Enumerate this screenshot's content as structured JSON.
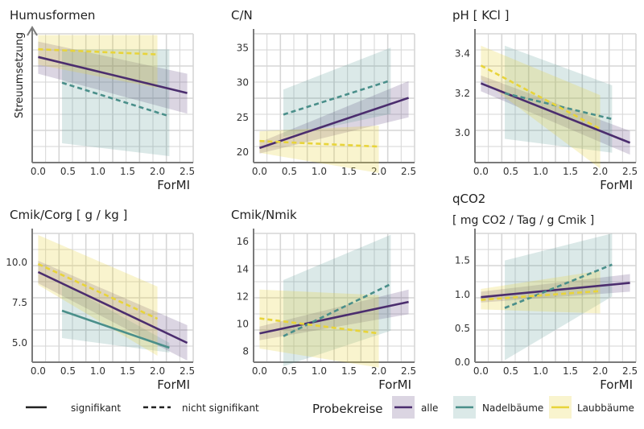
{
  "colors": {
    "alle": "#4b2d6e",
    "nadel": "#4a8f8a",
    "laub": "#e8d43a",
    "grid": "#d6d6d6",
    "axis": "#7a7a7a",
    "panel_bg": "#ffffff"
  },
  "chart_data": [
    {
      "type": "line",
      "title": "Humusformen",
      "ylabel": "Streuumsetzung",
      "xlabel": "ForMI",
      "xlim": [
        -0.1,
        2.6
      ],
      "ylim": [
        0,
        10
      ],
      "xticks": [
        "0.0",
        "0.5",
        "1.0",
        "1.5",
        "2.0",
        "2.5"
      ],
      "yticks": [],
      "series": [
        {
          "name": "alle",
          "style": "solid",
          "x": [
            0.0,
            2.5
          ],
          "y": [
            8.2,
            5.4
          ],
          "band_lo": [
            6.9,
            3.8
          ],
          "band_hi": [
            9.4,
            6.9
          ]
        },
        {
          "name": "Nadelbäume",
          "style": "dashed",
          "x": [
            0.4,
            2.2
          ],
          "y": [
            6.2,
            3.6
          ],
          "band_lo": [
            1.5,
            0.5
          ],
          "band_hi": [
            8.8,
            8.8
          ]
        },
        {
          "name": "Laubbäume",
          "style": "dashed",
          "x": [
            0.0,
            2.0
          ],
          "y": [
            8.8,
            8.4
          ],
          "band_lo": [
            7.6,
            5.8
          ],
          "band_hi": [
            9.9,
            9.9
          ]
        }
      ]
    },
    {
      "type": "line",
      "title": "C/N",
      "ylabel": "",
      "xlabel": "",
      "xlim": [
        -0.1,
        2.6
      ],
      "ylim": [
        18.5,
        37
      ],
      "xticks": [
        "0.0",
        "0.5",
        "1.0",
        "1.5",
        "2.0",
        "2.5"
      ],
      "yticks": [
        "20",
        "25",
        "30",
        "35"
      ],
      "series": [
        {
          "name": "alle",
          "style": "solid",
          "x": [
            0.0,
            2.5
          ],
          "y": [
            20.6,
            27.8
          ],
          "band_lo": [
            19.8,
            25.0
          ],
          "band_hi": [
            21.4,
            30.2
          ]
        },
        {
          "name": "Nadelbäume",
          "style": "dashed",
          "x": [
            0.4,
            2.2
          ],
          "y": [
            25.4,
            30.3
          ],
          "band_lo": [
            22.2,
            25.5
          ],
          "band_hi": [
            29.0,
            35.0
          ]
        },
        {
          "name": "Laubbäume",
          "style": "dashed",
          "x": [
            0.0,
            2.0
          ],
          "y": [
            21.6,
            20.8
          ],
          "band_lo": [
            19.9,
            17.0
          ],
          "band_hi": [
            23.0,
            23.8
          ]
        }
      ]
    },
    {
      "type": "line",
      "title": "pH [ KCl ]",
      "ylabel": "",
      "xlabel": "ForMI",
      "xlim": [
        -0.1,
        2.6
      ],
      "ylim": [
        2.85,
        3.5
      ],
      "xticks": [
        "0.0",
        "0.5",
        "1.0",
        "1.5",
        "2.0",
        "2.5"
      ],
      "yticks": [
        "3.0",
        "3.2",
        "3.4"
      ],
      "series": [
        {
          "name": "alle",
          "style": "solid",
          "x": [
            0.0,
            2.5
          ],
          "y": [
            3.25,
            2.95
          ],
          "band_lo": [
            3.21,
            2.89
          ],
          "band_hi": [
            3.29,
            3.01
          ]
        },
        {
          "name": "Nadelbäume",
          "style": "dashed",
          "x": [
            0.4,
            2.2
          ],
          "y": [
            3.2,
            3.07
          ],
          "band_lo": [
            2.97,
            2.9
          ],
          "band_hi": [
            3.44,
            3.24
          ]
        },
        {
          "name": "Laubbäume",
          "style": "dashed",
          "x": [
            0.0,
            2.0
          ],
          "y": [
            3.34,
            3.02
          ],
          "band_lo": [
            3.27,
            2.82
          ],
          "band_hi": [
            3.44,
            3.19
          ]
        }
      ]
    },
    {
      "type": "line",
      "title": "Cmik/Corg [ g / kg ]",
      "ylabel": "",
      "xlabel": "ForMI",
      "xlim": [
        -0.1,
        2.6
      ],
      "ylim": [
        3.8,
        11.8
      ],
      "xticks": [
        "0.0",
        "0.5",
        "1.0",
        "1.5",
        "2.0",
        "2.5"
      ],
      "yticks": [
        "5.0",
        "7.5",
        "10.0"
      ],
      "series": [
        {
          "name": "alle",
          "style": "solid",
          "x": [
            0.0,
            2.5
          ],
          "y": [
            9.4,
            5.0
          ],
          "band_lo": [
            8.7,
            3.9
          ],
          "band_hi": [
            10.1,
            6.1
          ]
        },
        {
          "name": "Nadelbäume",
          "style": "solid",
          "x": [
            0.4,
            2.2
          ],
          "y": [
            7.0,
            4.7
          ],
          "band_lo": [
            5.3,
            4.4
          ],
          "band_hi": [
            8.7,
            5.0
          ]
        },
        {
          "name": "Laubbäume",
          "style": "dashed",
          "x": [
            0.0,
            2.0
          ],
          "y": [
            9.9,
            6.5
          ],
          "band_lo": [
            8.6,
            4.2
          ],
          "band_hi": [
            11.7,
            8.5
          ]
        }
      ]
    },
    {
      "type": "line",
      "title": "Cmik/Nmik",
      "ylabel": "",
      "xlabel": "ForMI",
      "xlim": [
        -0.1,
        2.6
      ],
      "ylim": [
        7.2,
        16.6
      ],
      "xticks": [
        "0.0",
        "0.5",
        "1.0",
        "1.5",
        "2.0",
        "2.5"
      ],
      "yticks": [
        "8",
        "10",
        "12",
        "14",
        "16"
      ],
      "series": [
        {
          "name": "alle",
          "style": "solid",
          "x": [
            0.0,
            2.5
          ],
          "y": [
            9.3,
            11.6
          ],
          "band_lo": [
            8.8,
            10.7
          ],
          "band_hi": [
            9.8,
            12.5
          ]
        },
        {
          "name": "Nadelbäume",
          "style": "dashed",
          "x": [
            0.4,
            2.2
          ],
          "y": [
            9.1,
            12.9
          ],
          "band_lo": [
            6.9,
            9.5
          ],
          "band_hi": [
            13.2,
            16.5
          ]
        },
        {
          "name": "Laubbäume",
          "style": "dashed",
          "x": [
            0.0,
            2.0
          ],
          "y": [
            10.4,
            9.3
          ],
          "band_lo": [
            8.2,
            6.8
          ],
          "band_hi": [
            12.5,
            12.1
          ]
        }
      ]
    },
    {
      "type": "line",
      "title": "qCO2",
      "subtitle": "[ mg CO2 / Tag / g Cmik ]",
      "ylabel": "",
      "xlabel": "ForMI",
      "xlim": [
        -0.1,
        2.6
      ],
      "ylim": [
        0.0,
        1.9
      ],
      "xticks": [
        "0.0",
        "0.5",
        "1.0",
        "1.5",
        "2.0",
        "2.5"
      ],
      "yticks": [
        "0.0",
        "0.5",
        "1.0",
        "1.5"
      ],
      "series": [
        {
          "name": "alle",
          "style": "solid",
          "x": [
            0.0,
            2.5
          ],
          "y": [
            0.96,
            1.17
          ],
          "band_lo": [
            0.88,
            1.04
          ],
          "band_hi": [
            1.04,
            1.3
          ]
        },
        {
          "name": "Nadelbäume",
          "style": "dashed",
          "x": [
            0.4,
            2.2
          ],
          "y": [
            0.8,
            1.44
          ],
          "band_lo": [
            0.03,
            0.97
          ],
          "band_hi": [
            1.5,
            1.9
          ]
        },
        {
          "name": "Laubbäume",
          "style": "dashed",
          "x": [
            0.0,
            2.0
          ],
          "y": [
            0.92,
            1.05
          ],
          "band_lo": [
            0.78,
            0.72
          ],
          "band_hi": [
            1.08,
            1.35
          ]
        }
      ]
    }
  ],
  "legend": {
    "line_solid_label": "signifikant",
    "line_dashed_label": "nicht signifikant",
    "group_title": "Probekreise",
    "items": [
      "alle",
      "Nadelbäume",
      "Laubbäume"
    ]
  }
}
